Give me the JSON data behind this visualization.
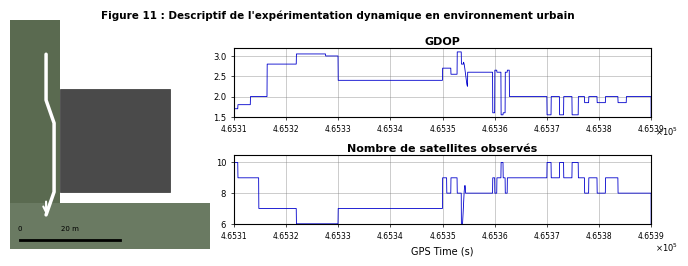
{
  "title": "Figure 11 : Descriptif de l'expérimentation dynamique en environnement urbain",
  "gdop_title": "GDOP",
  "sat_title": "Nombre de satellites observés",
  "xlabel": "GPS Time (s)",
  "x_scale_label": "x 10$^5$",
  "xmin": 4.6531,
  "xmax": 4.6539,
  "xticks": [
    4.6531,
    4.6532,
    4.6533,
    4.6534,
    4.6535,
    4.6536,
    4.6537,
    4.6538,
    4.6539
  ],
  "gdop_ylim": [
    1.5,
    3.2
  ],
  "gdop_yticks": [
    1.5,
    2.0,
    2.5,
    3.0
  ],
  "sat_ylim": [
    6,
    10.5
  ],
  "sat_yticks": [
    6,
    8,
    10
  ],
  "line_color": "#0000CC",
  "bg_color": "#FFFFFF",
  "map_bg": "#888888",
  "scale": 100000.0
}
